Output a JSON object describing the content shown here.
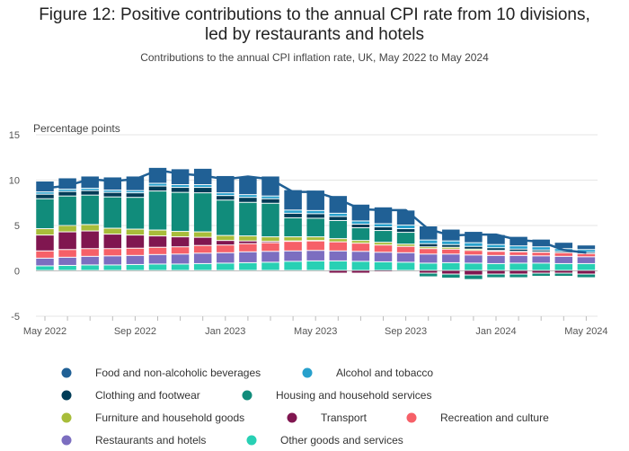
{
  "title": "Figure 12: Positive contributions to the annual CPI rate from 10 divisions, led by restaurants and hotels",
  "title_lines": [
    "Figure 12: Positive contributions to the annual CPI rate from 10 divisions,",
    "led by restaurants and hotels"
  ],
  "subtitle": "Contributions to the annual CPI inflation rate, UK, May 2022 to May 2024",
  "chart_data": {
    "type": "bar",
    "stacked": true,
    "ylabel": "Percentage points",
    "ylim": [
      -5,
      15
    ],
    "yticks": [
      -5,
      0,
      5,
      10,
      15
    ],
    "grid": true,
    "legend_position": "bottom",
    "xtick_labels": [
      {
        "index": 0,
        "label": "May 2022"
      },
      {
        "index": 4,
        "label": "Sep 2022"
      },
      {
        "index": 8,
        "label": "Jan 2023"
      },
      {
        "index": 12,
        "label": "May 2023"
      },
      {
        "index": 16,
        "label": "Sep 2023"
      },
      {
        "index": 20,
        "label": "Jan 2024"
      },
      {
        "index": 24,
        "label": "May 2024"
      }
    ],
    "categories": [
      "May 2022",
      "Jun 2022",
      "Jul 2022",
      "Aug 2022",
      "Sep 2022",
      "Oct 2022",
      "Nov 2022",
      "Dec 2022",
      "Jan 2023",
      "Feb 2023",
      "Mar 2023",
      "Apr 2023",
      "May 2023",
      "Jun 2023",
      "Jul 2023",
      "Aug 2023",
      "Sep 2023",
      "Oct 2023",
      "Nov 2023",
      "Dec 2023",
      "Jan 2024",
      "Feb 2024",
      "Mar 2024",
      "Apr 2024",
      "May 2024"
    ],
    "series": [
      {
        "name": "Other goods and services",
        "color": "#28d0b4",
        "values": [
          0.5,
          0.55,
          0.6,
          0.6,
          0.65,
          0.7,
          0.7,
          0.75,
          0.8,
          0.85,
          0.9,
          1.0,
          1.05,
          1.05,
          1.0,
          0.95,
          0.9,
          0.8,
          0.85,
          0.8,
          0.75,
          0.8,
          0.8,
          0.75,
          0.75
        ]
      },
      {
        "name": "Restaurants and hotels",
        "color": "#7c6ec0",
        "values": [
          0.85,
          0.9,
          0.95,
          1.0,
          1.0,
          1.05,
          1.1,
          1.15,
          1.15,
          1.2,
          1.2,
          1.15,
          1.15,
          1.1,
          1.1,
          1.05,
          1.05,
          1.0,
          0.95,
          0.9,
          0.9,
          0.85,
          0.8,
          0.8,
          0.75
        ]
      },
      {
        "name": "Recreation and culture",
        "color": "#f66068",
        "values": [
          0.8,
          0.85,
          0.85,
          0.8,
          0.8,
          0.8,
          0.8,
          0.85,
          0.85,
          0.9,
          0.95,
          1.05,
          1.05,
          1.0,
          0.9,
          0.8,
          0.7,
          0.6,
          0.55,
          0.5,
          0.45,
          0.4,
          0.4,
          0.4,
          0.35
        ]
      },
      {
        "name": "Transport",
        "color": "#801650",
        "values": [
          1.75,
          1.95,
          1.95,
          1.6,
          1.45,
          1.25,
          1.1,
          0.9,
          0.5,
          0.3,
          0.15,
          0.05,
          0.05,
          -0.3,
          -0.3,
          -0.15,
          -0.1,
          -0.3,
          -0.4,
          -0.5,
          -0.4,
          -0.4,
          -0.3,
          -0.3,
          -0.4
        ]
      },
      {
        "name": "Furniture and household goods",
        "color": "#a8bd3a",
        "values": [
          0.7,
          0.7,
          0.7,
          0.65,
          0.65,
          0.65,
          0.6,
          0.6,
          0.55,
          0.55,
          0.5,
          0.45,
          0.4,
          0.35,
          0.3,
          0.3,
          0.25,
          0.2,
          0.2,
          0.15,
          0.1,
          0.05,
          0.05,
          0.0,
          0.0
        ]
      },
      {
        "name": "Housing and household services",
        "color": "#118c7b",
        "values": [
          3.3,
          3.25,
          3.25,
          3.45,
          3.5,
          4.3,
          4.3,
          4.3,
          3.9,
          3.7,
          3.7,
          2.1,
          2.05,
          2.0,
          1.4,
          1.3,
          1.3,
          -0.4,
          -0.45,
          -0.5,
          -0.4,
          -0.4,
          -0.35,
          -0.35,
          -0.4
        ]
      },
      {
        "name": "Clothing and footwear",
        "color": "#003c57",
        "values": [
          0.5,
          0.5,
          0.5,
          0.5,
          0.5,
          0.55,
          0.55,
          0.6,
          0.5,
          0.55,
          0.5,
          0.5,
          0.5,
          0.45,
          0.4,
          0.4,
          0.4,
          0.35,
          0.3,
          0.3,
          0.3,
          0.25,
          0.2,
          0.15,
          0.15
        ]
      },
      {
        "name": "Alcohol and tobacco",
        "color": "#27a0cc",
        "values": [
          0.25,
          0.25,
          0.25,
          0.25,
          0.25,
          0.3,
          0.3,
          0.3,
          0.3,
          0.3,
          0.3,
          0.35,
          0.35,
          0.35,
          0.35,
          0.35,
          0.4,
          0.4,
          0.4,
          0.4,
          0.35,
          0.35,
          0.35,
          0.3,
          0.3
        ]
      },
      {
        "name": "Food and non-alcoholic beverages",
        "color": "#206095",
        "values": [
          1.2,
          1.25,
          1.35,
          1.45,
          1.6,
          1.75,
          1.75,
          1.8,
          1.9,
          2.0,
          2.2,
          2.25,
          2.25,
          1.95,
          1.85,
          1.85,
          1.65,
          1.55,
          1.3,
          1.25,
          1.1,
          1.05,
          0.85,
          0.7,
          0.5
        ]
      }
    ],
    "total_line": {
      "name": "CPI annual rate",
      "color": "#206095",
      "values": [
        9.1,
        9.4,
        10.1,
        9.9,
        10.1,
        11.1,
        10.7,
        10.5,
        10.1,
        10.4,
        10.1,
        8.7,
        8.7,
        7.9,
        6.8,
        6.7,
        6.7,
        4.6,
        3.9,
        4.0,
        4.0,
        3.4,
        3.2,
        2.3,
        2.0
      ]
    }
  },
  "legend": [
    {
      "label": "Food and non-alcoholic beverages",
      "color": "#206095"
    },
    {
      "label": "Alcohol and tobacco",
      "color": "#27a0cc"
    },
    {
      "label": "Clothing and footwear",
      "color": "#003c57"
    },
    {
      "label": "Housing and household services",
      "color": "#118c7b"
    },
    {
      "label": "Furniture and household goods",
      "color": "#a8bd3a"
    },
    {
      "label": "Transport",
      "color": "#801650"
    },
    {
      "label": "Recreation and culture",
      "color": "#f66068"
    },
    {
      "label": "Restaurants and hotels",
      "color": "#7c6ec0"
    },
    {
      "label": "Other goods and services",
      "color": "#28d0b4"
    }
  ]
}
